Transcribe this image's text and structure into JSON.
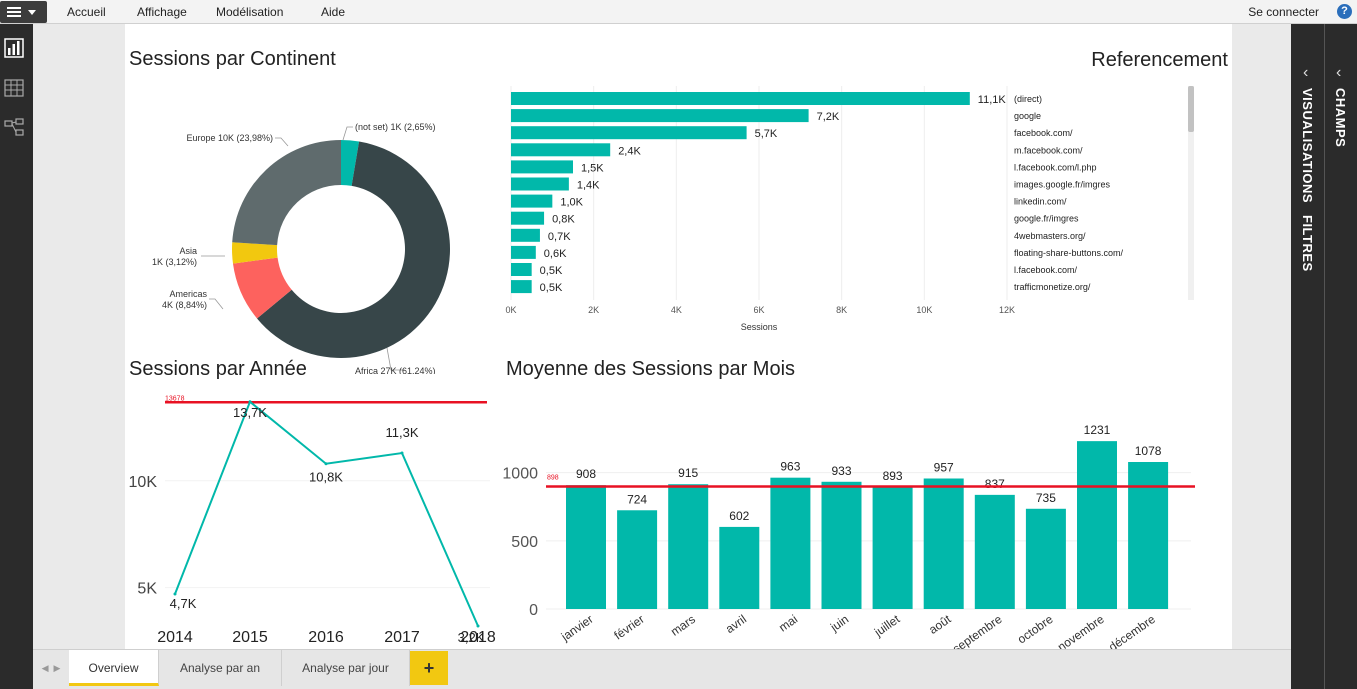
{
  "menu": {
    "items": [
      "Accueil",
      "Affichage",
      "Modélisation",
      "Aide"
    ],
    "signin": "Se connecter",
    "help": "?"
  },
  "panes": {
    "visualisations": "VISUALISATIONS",
    "filtres": "FILTRES",
    "champs": "CHAMPS"
  },
  "tabs": {
    "items": [
      "Overview",
      "Analyse par an",
      "Analyse par jour"
    ],
    "add": "+"
  },
  "colors": {
    "teal": "#01b8aa",
    "dark": "#374649",
    "grey": "#5f6b6d",
    "red": "#fd625e",
    "yellow": "#f2c80f",
    "refline": "#e81123",
    "accent_tab": "#f2c811"
  },
  "chart_data": [
    {
      "id": "continent",
      "type": "pie",
      "title": "Sessions par Continent",
      "slices": [
        {
          "name": "(not set)",
          "value": 1,
          "pct": 2.65,
          "label": "(not set) 1K (2,65%)",
          "color": "#01b8aa"
        },
        {
          "name": "Africa",
          "value": 27,
          "pct": 61.24,
          "label": "Africa 27K (61,24%)",
          "color": "#374649"
        },
        {
          "name": "Americas",
          "value": 4,
          "pct": 8.84,
          "label_lines": [
            "Americas",
            "4K (8,84%)"
          ],
          "color": "#fd625e"
        },
        {
          "name": "Asia",
          "value": 1,
          "pct": 3.12,
          "label_lines": [
            "Asia",
            "1K (3,12%)"
          ],
          "color": "#f2c80f"
        },
        {
          "name": "Europe",
          "value": 10,
          "pct": 23.98,
          "label": "Europe 10K (23,98%)",
          "color": "#5f6b6d"
        }
      ]
    },
    {
      "id": "referencement",
      "type": "bar",
      "orientation": "horizontal",
      "title": "Referencement",
      "xlabel": "Sessions",
      "xlim": [
        0,
        12000
      ],
      "xticks": [
        0,
        2000,
        4000,
        6000,
        8000,
        10000,
        12000
      ],
      "xtick_labels": [
        "0K",
        "2K",
        "4K",
        "6K",
        "8K",
        "10K",
        "12K"
      ],
      "categories": [
        "(direct)",
        "google",
        "facebook.com/",
        "m.facebook.com/",
        "l.facebook.com/l.php",
        "images.google.fr/imgres",
        "linkedin.com/",
        "google.fr/imgres",
        "4webmasters.org/",
        "floating-share-buttons.com/",
        "l.facebook.com/",
        "trafficmonetize.org/"
      ],
      "values": [
        11100,
        7200,
        5700,
        2400,
        1500,
        1400,
        1000,
        800,
        700,
        600,
        500,
        500
      ],
      "data_labels": [
        "11,1K",
        "7,2K",
        "5,7K",
        "2,4K",
        "1,5K",
        "1,4K",
        "1,0K",
        "0,8K",
        "0,7K",
        "0,6K",
        "0,5K",
        "0,5K"
      ]
    },
    {
      "id": "annee",
      "type": "line",
      "title": "Sessions par Année",
      "x": [
        "2014",
        "2015",
        "2016",
        "2017",
        "2018"
      ],
      "values": [
        4700,
        13700,
        10800,
        11300,
        3200
      ],
      "data_labels": [
        "4,7K",
        "13,7K",
        "10,8K",
        "11,3K",
        "3,2K"
      ],
      "ylim": [
        3200,
        14300
      ],
      "yticks": [
        5000,
        10000
      ],
      "ytick_labels": [
        "5K",
        "10K"
      ],
      "reference_line": {
        "value": 13678,
        "label": "13678"
      }
    },
    {
      "id": "mois",
      "type": "bar",
      "title": "Moyenne des Sessions par Mois",
      "categories": [
        "janvier",
        "février",
        "mars",
        "avril",
        "mai",
        "juin",
        "juillet",
        "août",
        "septembre",
        "octobre",
        "novembre",
        "décembre"
      ],
      "values": [
        908,
        724,
        915,
        602,
        963,
        933,
        893,
        957,
        837,
        735,
        1231,
        1078
      ],
      "ylim": [
        0,
        1320
      ],
      "yticks": [
        0,
        500,
        1000
      ],
      "ytick_labels": [
        "0",
        "500",
        "1000"
      ],
      "reference_line": {
        "value": 898,
        "label": "898"
      }
    }
  ]
}
